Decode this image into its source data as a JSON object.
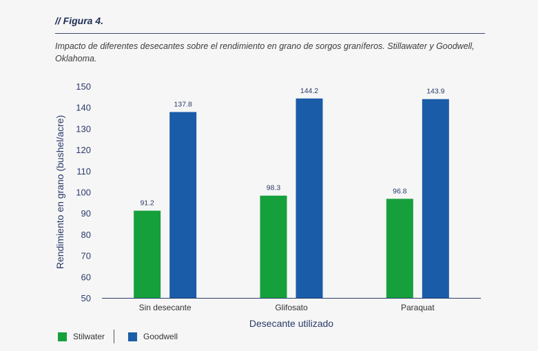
{
  "figure": {
    "label": "// Figura 4.",
    "caption": "Impacto de diferentes desecantes sobre el rendimiento en grano de sorgos graníferos. Stillawater y Goodwell, Oklahoma."
  },
  "chart_data": {
    "type": "bar",
    "categories": [
      "Sin desecante",
      "Glifosato",
      "Paraquat"
    ],
    "series": [
      {
        "name": "Stilwater",
        "values": [
          91.2,
          98.3,
          96.8
        ],
        "color": "#16a03c"
      },
      {
        "name": "Goodwell",
        "values": [
          137.8,
          144.2,
          143.9
        ],
        "color": "#1a5ca8"
      }
    ],
    "xlabel": "Desecante utilizado",
    "ylabel": "Rendimiento en grano (bushel/acre)",
    "ylim": [
      50,
      150
    ],
    "yticks": [
      50,
      60,
      70,
      80,
      90,
      100,
      110,
      120,
      130,
      140,
      150
    ],
    "grid": false,
    "legend": "bottom-left"
  }
}
